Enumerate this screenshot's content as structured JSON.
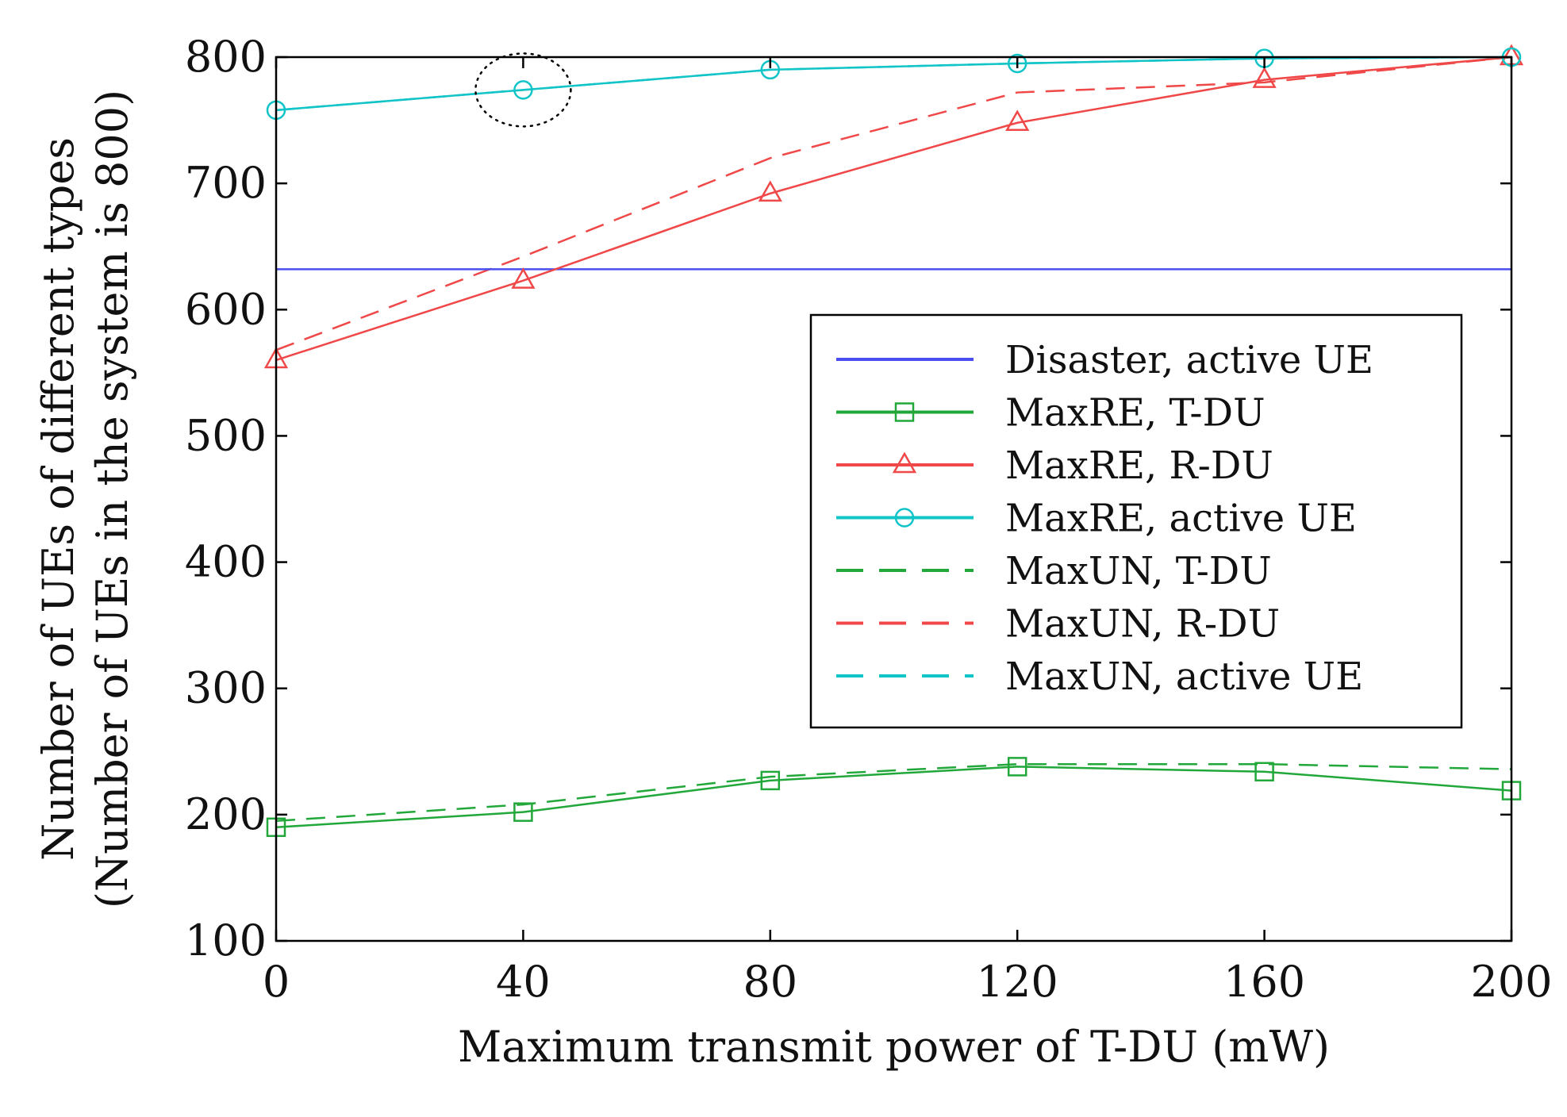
{
  "chart_data": {
    "type": "line",
    "title": "",
    "xlabel": "Maximum transmit power of T-DU (mW)",
    "ylabel": [
      "Number of UEs of different types",
      "(Number of UEs in the system is 800)"
    ],
    "xlim": [
      0,
      200
    ],
    "ylim": [
      100,
      800
    ],
    "xticks": [
      0,
      40,
      80,
      120,
      160,
      200
    ],
    "yticks": [
      100,
      200,
      300,
      400,
      500,
      600,
      700,
      800
    ],
    "grid": false,
    "legend_position": "center-right",
    "x": [
      0,
      40,
      80,
      120,
      160,
      200
    ],
    "series": [
      {
        "name": "Disaster, active UE",
        "color": "#4a4ef0",
        "dash": "solid",
        "marker": "none",
        "values": [
          632,
          632,
          632,
          632,
          632,
          632
        ]
      },
      {
        "name": "MaxRE, T-DU",
        "color": "#22a83a",
        "dash": "solid",
        "marker": "square",
        "values": [
          190,
          202,
          227,
          238,
          234,
          219
        ]
      },
      {
        "name": "MaxRE, R-DU",
        "color": "#f04848",
        "dash": "solid",
        "marker": "triangle",
        "values": [
          560,
          623,
          692,
          748,
          782,
          800
        ]
      },
      {
        "name": "MaxRE, active UE",
        "color": "#11c4c8",
        "dash": "solid",
        "marker": "circle",
        "values": [
          758,
          774,
          790,
          795,
          799,
          800
        ]
      },
      {
        "name": "MaxUN, T-DU",
        "color": "#22a83a",
        "dash": "dashed",
        "marker": "none",
        "values": [
          195,
          208,
          230,
          240,
          240,
          236
        ]
      },
      {
        "name": "MaxUN, R-DU",
        "color": "#f04848",
        "dash": "dashed",
        "marker": "none",
        "values": [
          568,
          642,
          720,
          772,
          780,
          800
        ]
      },
      {
        "name": "MaxUN, active UE",
        "color": "#11c4c8",
        "dash": "dashed",
        "marker": "none",
        "values": [
          758,
          774,
          790,
          795,
          799,
          800
        ]
      }
    ],
    "annotations": [
      {
        "type": "dotted-circle",
        "x": 40,
        "y": 774
      }
    ]
  }
}
